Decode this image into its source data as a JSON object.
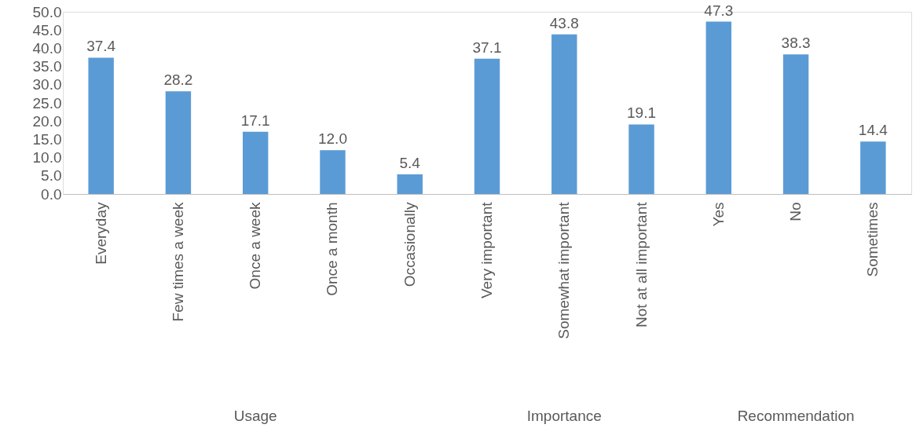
{
  "chart_data": {
    "type": "bar",
    "categories": [
      "Everyday",
      "Few times a week",
      "Once a week",
      "Once a month",
      "Occasionally",
      "Very important",
      "Somewhat important",
      "Not at all important",
      "Yes",
      "No",
      "Sometimes"
    ],
    "values": [
      37.4,
      28.2,
      17.1,
      12.0,
      5.4,
      37.1,
      43.8,
      19.1,
      47.3,
      38.3,
      14.4
    ],
    "color": "#5b9bd5",
    "ylim": [
      0,
      50
    ],
    "yticks": [
      {
        "value": 0,
        "label": "0.0"
      },
      {
        "value": 5,
        "label": "5.0"
      },
      {
        "value": 10,
        "label": "10.0"
      },
      {
        "value": 15,
        "label": "15.0"
      },
      {
        "value": 20,
        "label": "20.0"
      },
      {
        "value": 25,
        "label": "25.0"
      },
      {
        "value": 30,
        "label": "30.0"
      },
      {
        "value": 35,
        "label": "35.0"
      },
      {
        "value": 40,
        "label": "40.0"
      },
      {
        "value": 45,
        "label": "45.0"
      },
      {
        "value": 50,
        "label": "50.0"
      }
    ],
    "value_labels": [
      "37.4",
      "28.2",
      "17.1",
      "12.0",
      "5.4",
      "37.1",
      "43.8",
      "19.1",
      "47.3",
      "38.3",
      "14.4"
    ],
    "annotations": [
      "Usage",
      "Importance",
      "Recommendation"
    ],
    "grid": false
  }
}
